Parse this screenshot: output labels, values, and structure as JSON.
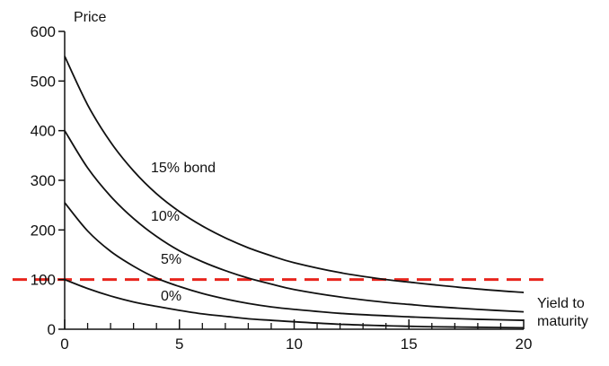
{
  "chart_data": {
    "type": "line",
    "title": "",
    "ylabel": "Price",
    "xlabel_lines": [
      "Yield to",
      "maturity"
    ],
    "xlim": [
      0,
      20
    ],
    "ylim": [
      0,
      600
    ],
    "x_ticks": [
      0,
      5,
      10,
      15,
      20
    ],
    "y_ticks": [
      0,
      100,
      200,
      300,
      400,
      500,
      600
    ],
    "grid": false,
    "reference_line": {
      "y": 100,
      "color": "#e8251d",
      "style": "dashed"
    },
    "series": [
      {
        "name": "15% bond",
        "label": "15% bond",
        "x": [
          0,
          1,
          2,
          3,
          4,
          5,
          6,
          7,
          8,
          9,
          10,
          12,
          14,
          15,
          16,
          18,
          20
        ],
        "y": [
          550,
          452,
          377,
          319,
          273,
          237,
          208,
          184,
          164,
          148,
          134,
          114,
          100,
          95,
          90,
          81,
          74
        ]
      },
      {
        "name": "10%",
        "label": "10%",
        "x": [
          0,
          1,
          2,
          3,
          4,
          5,
          6,
          7,
          8,
          9,
          10,
          12,
          14,
          15,
          16,
          18,
          20
        ],
        "y": [
          400,
          325,
          268,
          223,
          187,
          158,
          136,
          118,
          103,
          91,
          80,
          65,
          54,
          50,
          46,
          40,
          35
        ]
      },
      {
        "name": "5%",
        "label": "5%",
        "x": [
          0,
          1,
          2,
          3,
          4,
          5,
          6,
          7,
          8,
          9,
          10,
          12,
          14,
          15,
          16,
          18,
          20
        ],
        "y": [
          255,
          198,
          157,
          127,
          103,
          86,
          72,
          61,
          52,
          45,
          40,
          32,
          27,
          25,
          23,
          20,
          18
        ]
      },
      {
        "name": "0%",
        "label": "0%",
        "x": [
          0,
          1,
          2,
          3,
          4,
          5,
          6,
          7,
          8,
          9,
          10,
          12,
          14,
          15,
          16,
          18,
          20
        ],
        "y": [
          100,
          82,
          67,
          55,
          46,
          38,
          31,
          26,
          21,
          18,
          15,
          10,
          7,
          6,
          5,
          4,
          3
        ]
      }
    ]
  },
  "colors": {
    "axis": "#111111",
    "curve": "#111111",
    "reference": "#e8251d"
  }
}
